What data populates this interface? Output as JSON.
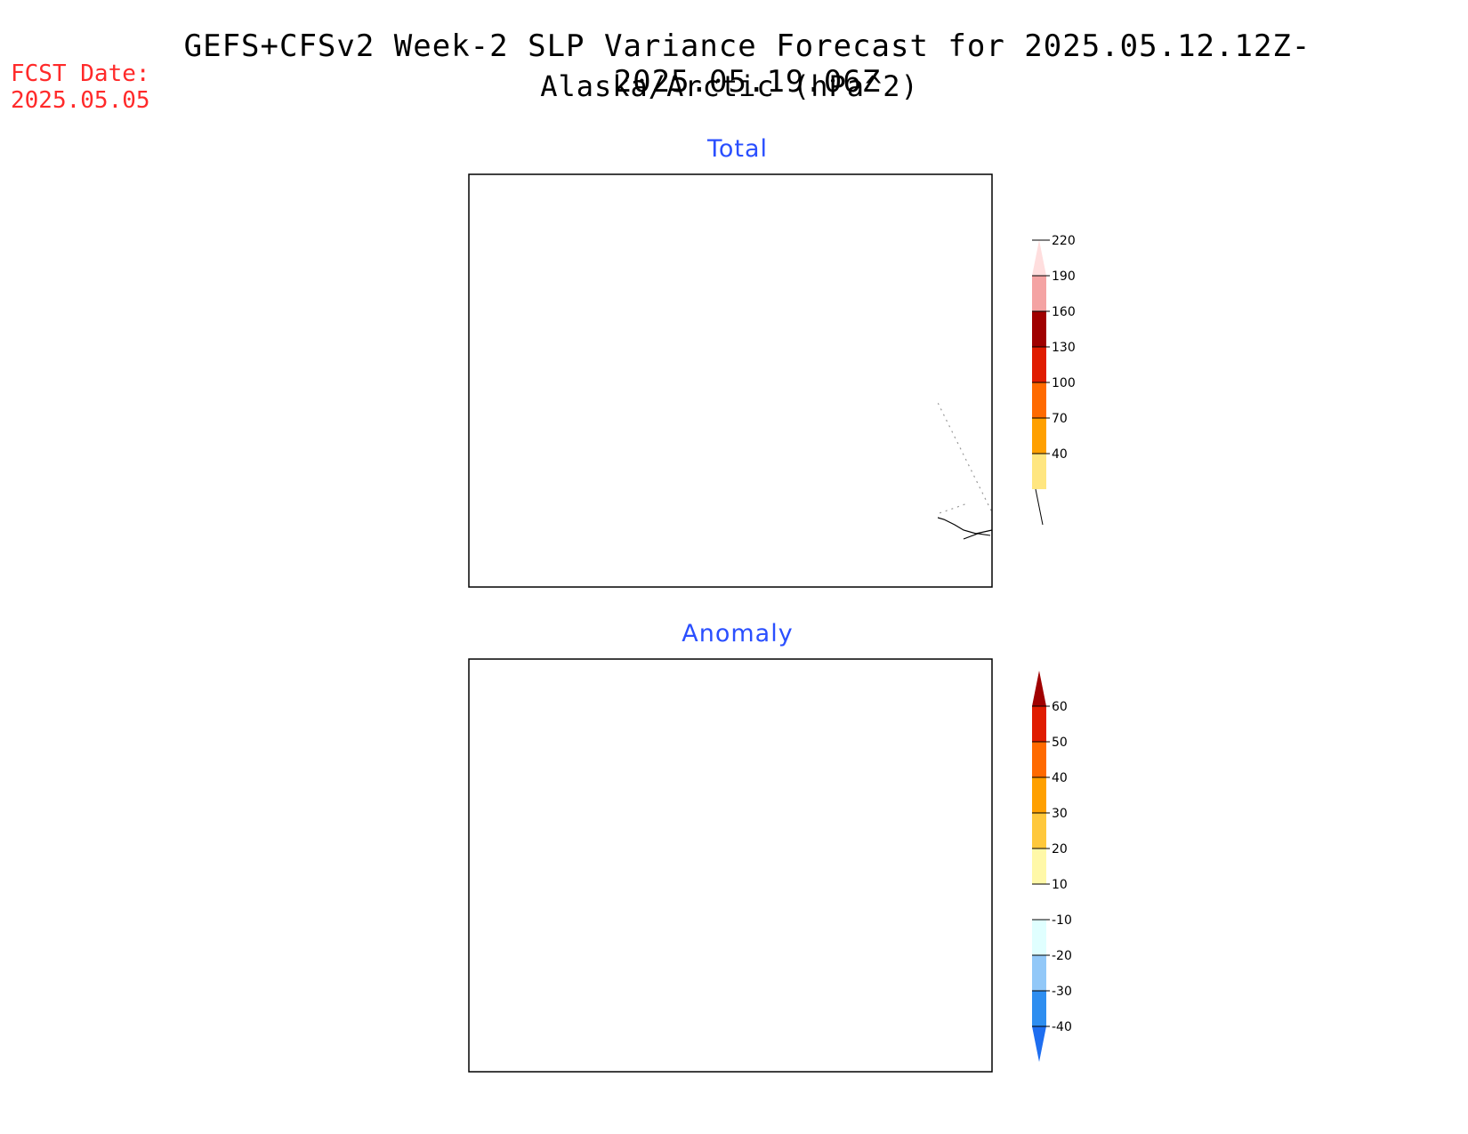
{
  "title_line1": "GEFS+CFSv2 Week-2 SLP Variance Forecast for 2025.05.12.12Z-2025.05.19.06Z",
  "title_line2": "Alaska/Arctic (hPa^2)",
  "fcst_label": "FCST Date:",
  "fcst_date": "2025.05.05",
  "panels": [
    {
      "title": "Total",
      "colorbar": {
        "labels": [
          "40",
          "70",
          "100",
          "130",
          "160",
          "190",
          "220"
        ],
        "colors": [
          "#ffe680",
          "#ffa000",
          "#ff6a00",
          "#e01c00",
          "#a00000",
          "#f4a3a3",
          "#ffdede"
        ]
      }
    },
    {
      "title": "Anomaly",
      "colorbar": {
        "labels": [
          "-40",
          "-30",
          "-20",
          "-10",
          "10",
          "20",
          "30",
          "40",
          "50",
          "60"
        ],
        "colors": [
          "#1e6ef0",
          "#2e8ef0",
          "#92c8f8",
          "#e0ffff",
          "#ffffff",
          "#fff8a8",
          "#ffc83c",
          "#ffa000",
          "#ff6a00",
          "#e01c00",
          "#a00000"
        ]
      }
    }
  ],
  "colors": {
    "land_outline": "#000000",
    "grid": "#999999",
    "title_blue": "#2a4fff",
    "fcst_red": "#ff2a2a"
  }
}
